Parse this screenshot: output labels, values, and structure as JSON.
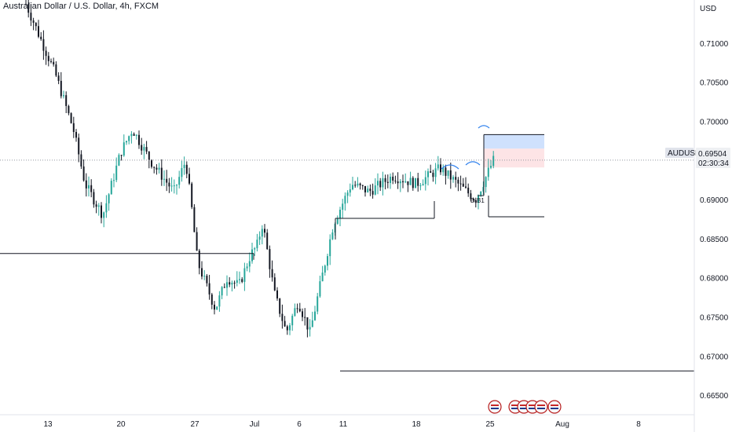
{
  "header": {
    "title": "Australian Dollar / U.S. Dollar, 4h, FXCM"
  },
  "price_axis": {
    "currency": "USD",
    "ticks": [
      "0.71000",
      "0.70500",
      "0.70000",
      "0.69000",
      "0.68500",
      "0.68000",
      "0.67500",
      "0.67000",
      "0.66500"
    ]
  },
  "symbol_tag": {
    "symbol": "AUDUSD",
    "price": "0.69504",
    "countdown": "02:30:34"
  },
  "annotation": {
    "label": "D B1"
  },
  "colors": {
    "up": "#26a69a",
    "down": "#131722",
    "line": "#131722",
    "tag_bg": "#e0e3eb",
    "target_zone": "#cfe1fd",
    "stop_zone": "#fde4e6",
    "arc": "#2f80ed"
  },
  "chart_data": {
    "type": "candlestick",
    "title": "Australian Dollar / U.S. Dollar, 4h, FXCM",
    "ylim": [
      0.6625,
      0.7155
    ],
    "y_ticks": [
      0.71,
      0.705,
      0.7,
      0.69,
      0.685,
      0.68,
      0.675,
      0.67,
      0.665
    ],
    "x_tick_labels": [
      "13",
      "20",
      "27",
      "Jul",
      "6",
      "11",
      "18",
      "25",
      "Aug",
      "8"
    ],
    "last_price": 0.69504,
    "grid": false,
    "series": [
      {
        "name": "price_path",
        "x": [
          0,
          5,
          8,
          10,
          13,
          16,
          18,
          21,
          25,
          27,
          28,
          29,
          32,
          34,
          36,
          38,
          39,
          40,
          42,
          44,
          46,
          48,
          50,
          52,
          55,
          58,
          62,
          66,
          70,
          76,
          79
        ],
        "y": [
          0.715,
          0.706,
          0.699,
          0.692,
          0.688,
          0.696,
          0.699,
          0.695,
          0.691,
          0.695,
          0.689,
          0.682,
          0.676,
          0.68,
          0.679,
          0.683,
          0.684,
          0.687,
          0.678,
          0.673,
          0.677,
          0.673,
          0.68,
          0.687,
          0.692,
          0.691,
          0.693,
          0.692,
          0.694,
          0.69,
          0.695
        ]
      }
    ],
    "lines": [
      {
        "kind": "horizontal",
        "y": 0.6831
      },
      {
        "kind": "horizontal",
        "y": 0.6876
      },
      {
        "kind": "horizontal",
        "y": 0.6681
      },
      {
        "kind": "horizontal",
        "y": 0.6878
      }
    ],
    "position_zones": [
      {
        "kind": "target",
        "from": 0.6965,
        "to": 0.6983
      },
      {
        "kind": "stop",
        "from": 0.6941,
        "to": 0.6965
      }
    ]
  }
}
